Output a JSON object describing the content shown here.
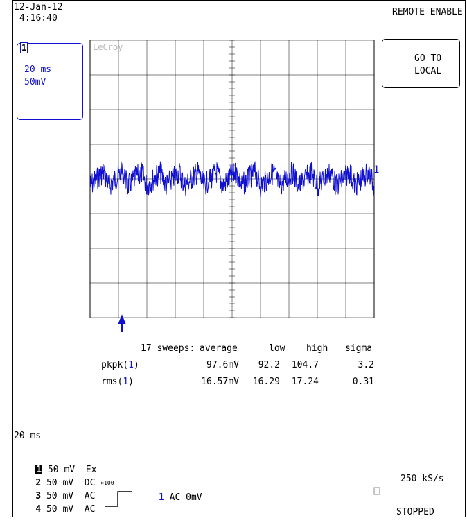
{
  "header": {
    "date": "12-Jan-12",
    "time": "4:16:40",
    "remote_status": "REMOTE ENABLE"
  },
  "go_to_local": {
    "line1": "GO TO",
    "line2": "LOCAL"
  },
  "channel_box": {
    "channel": "1",
    "timebase": "20 ms",
    "volts_per_div": "50mV"
  },
  "grid_logo": "LeCroy",
  "trace_marker": "1",
  "stats": {
    "sweeps": "17 sweeps:",
    "headers": [
      "average",
      "low",
      "high",
      "sigma"
    ],
    "rows": [
      {
        "param": "pkpk(",
        "ch": "1",
        "close": ")",
        "values": [
          "97.6mV",
          "92.2",
          "104.7",
          "3.2"
        ]
      },
      {
        "param": "rms(",
        "ch": "1",
        "close": ")",
        "values": [
          "16.57mV",
          "16.29",
          "17.24",
          "0.31"
        ]
      }
    ]
  },
  "timebase_bottom": "20 ms",
  "channels": [
    {
      "num": "1",
      "scale": "50 mV",
      "coupling": "Ex",
      "extra": ""
    },
    {
      "num": "2",
      "scale": "50 mV",
      "coupling": "DC",
      "extra": "×100"
    },
    {
      "num": "3",
      "scale": "50 mV",
      "coupling": "AC",
      "extra": ""
    },
    {
      "num": "4",
      "scale": "50 mV",
      "coupling": "AC",
      "extra": ""
    }
  ],
  "trigger": {
    "channel": "1",
    "text": "AC 0mV"
  },
  "sample_rate": "250 kS/s",
  "acq_status": "STOPPED",
  "colors": {
    "trace": "#1010d0",
    "grid": "#000000",
    "logo": "#b8b8b8"
  }
}
